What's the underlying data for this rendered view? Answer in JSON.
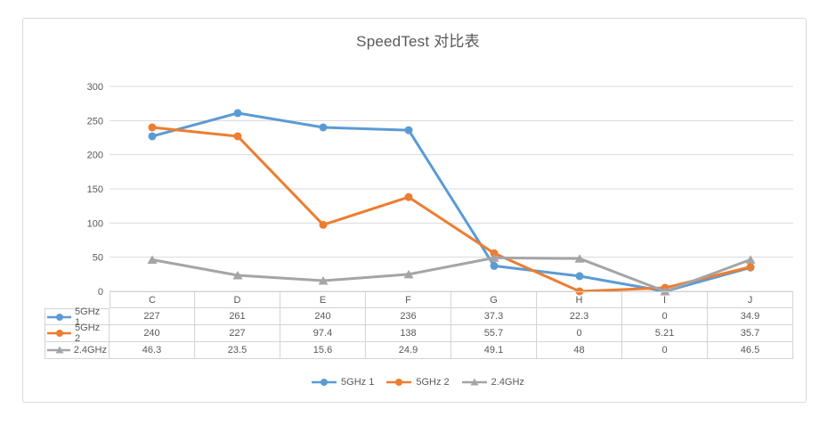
{
  "chart_data": {
    "type": "line",
    "title": "SpeedTest 对比表",
    "categories": [
      "C",
      "D",
      "E",
      "F",
      "G",
      "H",
      "I",
      "J"
    ],
    "series": [
      {
        "name": "5GHz 1",
        "color": "#5B9BD5",
        "marker": "circle",
        "values": [
          227,
          261,
          240,
          236,
          37.3,
          22.3,
          0,
          34.9
        ]
      },
      {
        "name": "5GHz 2",
        "color": "#ED7D31",
        "marker": "circle",
        "values": [
          240,
          227,
          97.4,
          138,
          55.7,
          0,
          5.21,
          35.7
        ]
      },
      {
        "name": "2.4GHz",
        "color": "#A5A5A5",
        "marker": "triangle",
        "values": [
          46.3,
          23.5,
          15.6,
          24.9,
          49.1,
          48,
          0,
          46.5
        ]
      }
    ],
    "ylim": [
      0,
      300
    ],
    "yticks": [
      0,
      50,
      100,
      150,
      200,
      250,
      300
    ],
    "xlabel": "",
    "ylabel": "",
    "grid": true,
    "legend_position": "bottom",
    "data_table_shown": true
  },
  "colors": {
    "grid": "#D9D9D9",
    "chart_border": "#D9D9D9",
    "table_border": "#D4D4D4",
    "text": "#595959"
  }
}
